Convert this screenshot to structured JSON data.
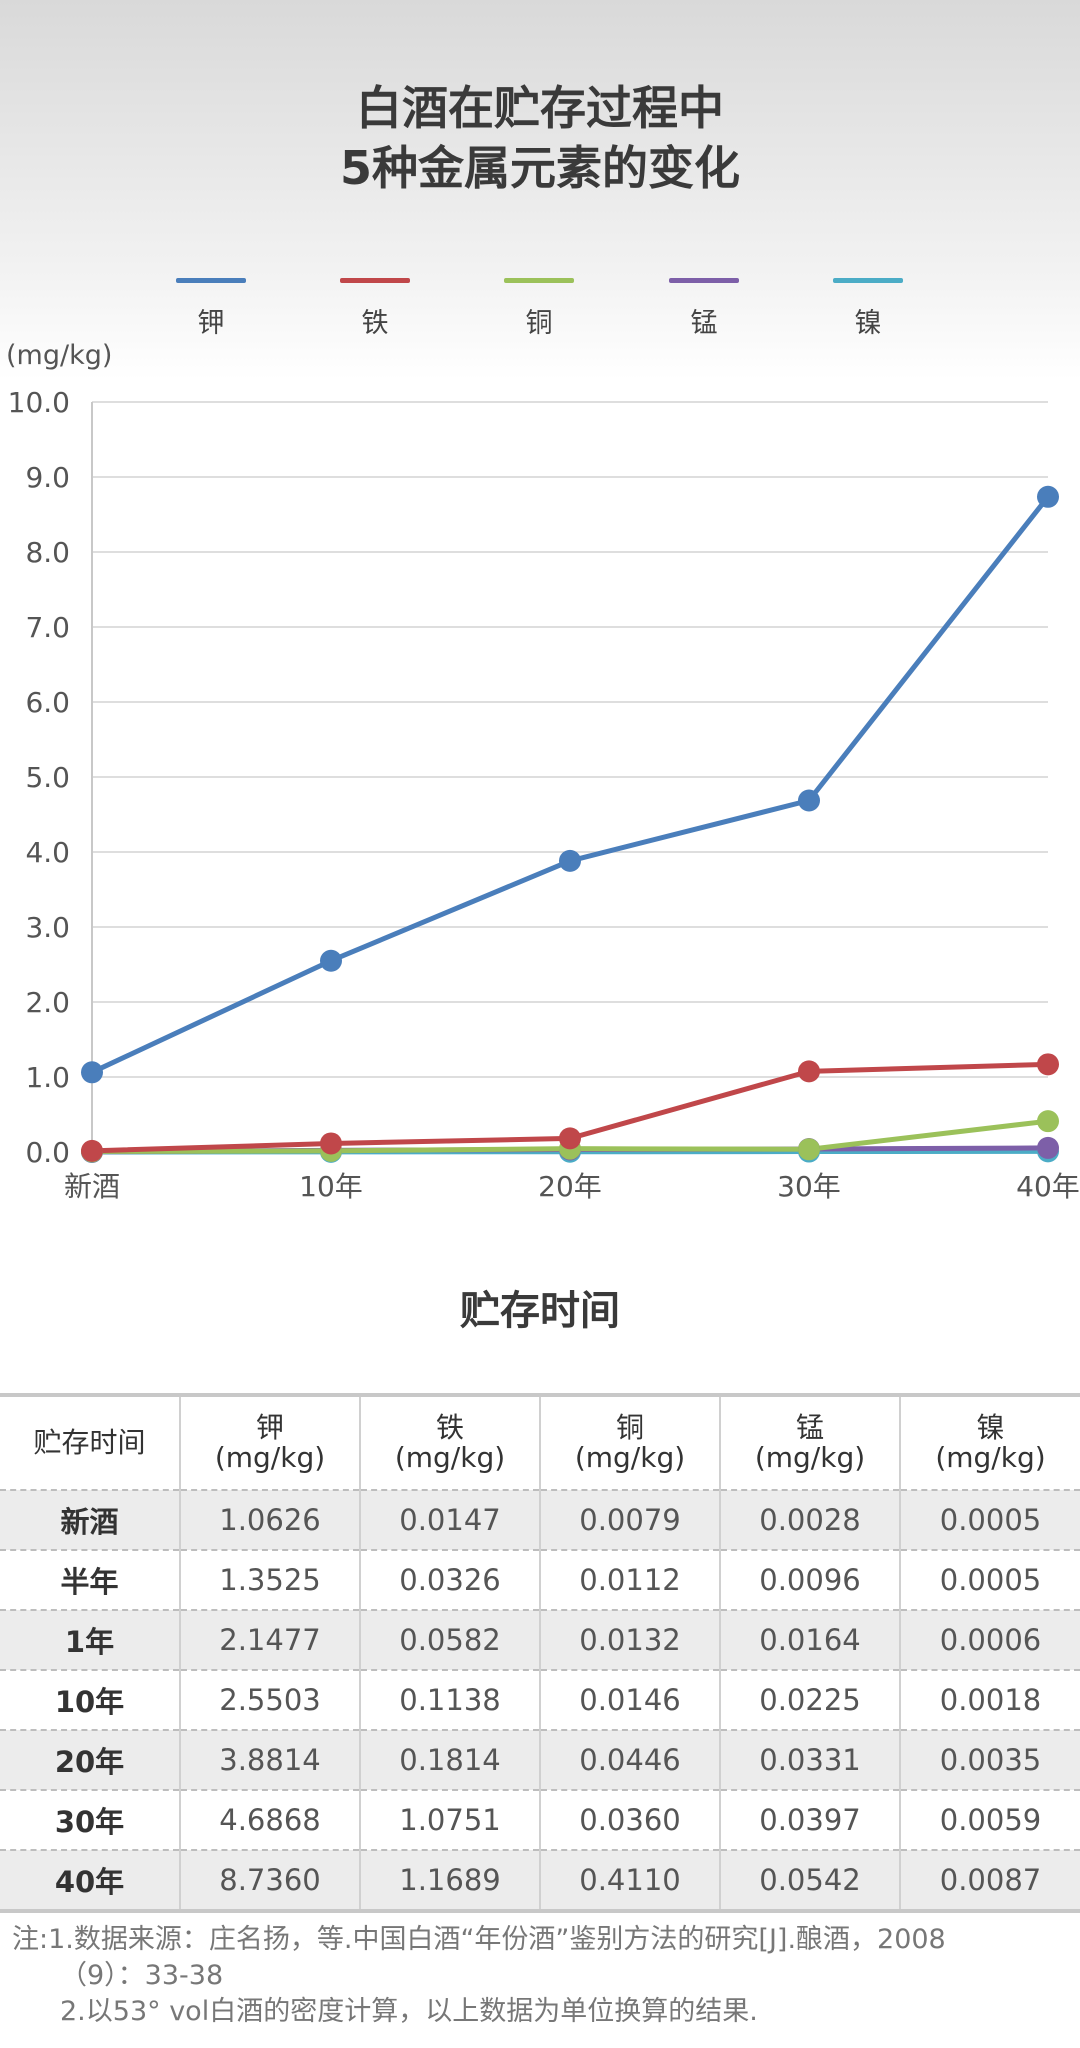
{
  "title_line1": "白酒在贮存过程中",
  "title_line2": "5种金属元素的变化",
  "unit_label": "(mg/kg)",
  "x_axis_title": "贮存时间",
  "legend": [
    {
      "name": "钾",
      "color": "#4a7ebb"
    },
    {
      "name": "铁",
      "color": "#c0474a"
    },
    {
      "name": "铜",
      "color": "#9bc15a"
    },
    {
      "name": "锰",
      "color": "#7d5fa8"
    },
    {
      "name": "镍",
      "color": "#4bacc6"
    }
  ],
  "chart_data": {
    "type": "line",
    "title": "白酒在贮存过程中5种金属元素的变化",
    "xlabel": "贮存时间",
    "ylabel": "(mg/kg)",
    "categories": [
      "新酒",
      "10年",
      "20年",
      "30年",
      "40年"
    ],
    "ylim": [
      0,
      10
    ],
    "yticks": [
      "0.0",
      "1.0",
      "2.0",
      "3.0",
      "4.0",
      "5.0",
      "6.0",
      "7.0",
      "8.0",
      "9.0",
      "10.0"
    ],
    "grid": true,
    "legend_position": "top",
    "series": [
      {
        "name": "钾",
        "color": "#4a7ebb",
        "values": [
          1.0626,
          2.5503,
          3.8814,
          4.6868,
          8.736
        ]
      },
      {
        "name": "铁",
        "color": "#c0474a",
        "values": [
          0.0147,
          0.1138,
          0.1814,
          1.0751,
          1.1689
        ]
      },
      {
        "name": "铜",
        "color": "#9bc15a",
        "values": [
          0.0079,
          0.0146,
          0.0446,
          0.036,
          0.411
        ]
      },
      {
        "name": "锰",
        "color": "#7d5fa8",
        "values": [
          0.0028,
          0.0225,
          0.0331,
          0.0397,
          0.0542
        ]
      },
      {
        "name": "镍",
        "color": "#4bacc6",
        "values": [
          0.0005,
          0.0018,
          0.0035,
          0.0059,
          0.0087
        ]
      }
    ]
  },
  "table": {
    "corner": "贮存时间",
    "headers": [
      {
        "element": "钾",
        "unit": "(mg/kg)"
      },
      {
        "element": "铁",
        "unit": "(mg/kg)"
      },
      {
        "element": "铜",
        "unit": "(mg/kg)"
      },
      {
        "element": "锰",
        "unit": "(mg/kg)"
      },
      {
        "element": "镍",
        "unit": "(mg/kg)"
      }
    ],
    "rows": [
      {
        "label": "新酒",
        "cells": [
          "1.0626",
          "0.0147",
          "0.0079",
          "0.0028",
          "0.0005"
        ]
      },
      {
        "label": "半年",
        "cells": [
          "1.3525",
          "0.0326",
          "0.0112",
          "0.0096",
          "0.0005"
        ]
      },
      {
        "label": "1年",
        "cells": [
          "2.1477",
          "0.0582",
          "0.0132",
          "0.0164",
          "0.0006"
        ]
      },
      {
        "label": "10年",
        "cells": [
          "2.5503",
          "0.1138",
          "0.0146",
          "0.0225",
          "0.0018"
        ]
      },
      {
        "label": "20年",
        "cells": [
          "3.8814",
          "0.1814",
          "0.0446",
          "0.0331",
          "0.0035"
        ]
      },
      {
        "label": "30年",
        "cells": [
          "4.6868",
          "1.0751",
          "0.0360",
          "0.0397",
          "0.0059"
        ]
      },
      {
        "label": "40年",
        "cells": [
          "8.7360",
          "1.1689",
          "0.4110",
          "0.0542",
          "0.0087"
        ]
      }
    ]
  },
  "notes": {
    "line1": "注:1.数据来源：庄名扬，等.中国白酒“年份酒”鉴别方法的研究[J].酿酒，2008",
    "line1_cont": "（9）：33-38",
    "line2": "2.以53° vol白酒的密度计算，以上数据为单位换算的结果."
  }
}
